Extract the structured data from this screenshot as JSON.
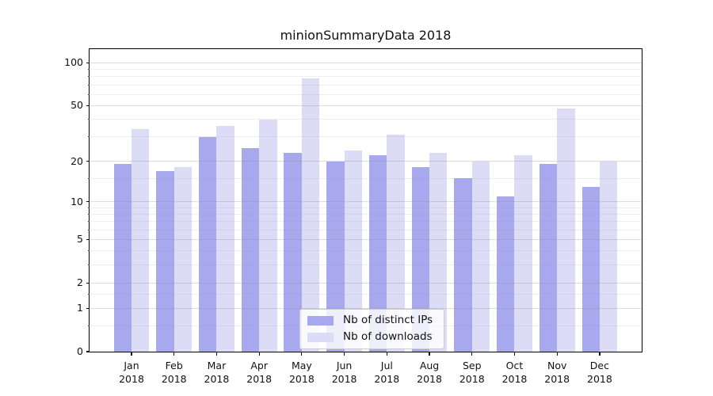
{
  "title": "minionSummaryData 2018",
  "chart_data": {
    "type": "bar",
    "title": "minionSummaryData 2018",
    "x_labels": [
      {
        "month": "Jan",
        "year": "2018"
      },
      {
        "month": "Feb",
        "year": "2018"
      },
      {
        "month": "Mar",
        "year": "2018"
      },
      {
        "month": "Apr",
        "year": "2018"
      },
      {
        "month": "May",
        "year": "2018"
      },
      {
        "month": "Jun",
        "year": "2018"
      },
      {
        "month": "Jul",
        "year": "2018"
      },
      {
        "month": "Aug",
        "year": "2018"
      },
      {
        "month": "Sep",
        "year": "2018"
      },
      {
        "month": "Oct",
        "year": "2018"
      },
      {
        "month": "Nov",
        "year": "2018"
      },
      {
        "month": "Dec",
        "year": "2018"
      }
    ],
    "series": [
      {
        "name": "Nb of distinct IPs",
        "color": "#a8a8ef",
        "values": [
          19,
          17,
          30,
          25,
          23,
          20,
          22,
          18,
          15,
          11,
          19,
          13
        ]
      },
      {
        "name": "Nb of downloads",
        "color": "#dcdcf7",
        "values": [
          34,
          18,
          36,
          40,
          78,
          24,
          31,
          23,
          20,
          22,
          48,
          20
        ]
      }
    ],
    "y_scale": "log1p",
    "ylim": [
      0,
      125
    ],
    "y_major_ticks": [
      0,
      1,
      2,
      5,
      10,
      20,
      50,
      100
    ],
    "y_minor_gridlines": [
      0.5,
      1.5,
      3,
      4,
      6,
      7,
      8,
      9,
      15,
      30,
      40,
      60,
      70,
      80,
      90
    ],
    "grid": true,
    "legend_position": "lower-center"
  },
  "colors": {
    "ips_bar": "#a8a8ef",
    "downloads_bar": "#dcdcf7",
    "grid_major": "#d9d9d9",
    "grid_minor": "#eeeeee",
    "axis": "#000000",
    "text": "#111111",
    "legend_border": "#cccccc",
    "background": "#ffffff"
  }
}
